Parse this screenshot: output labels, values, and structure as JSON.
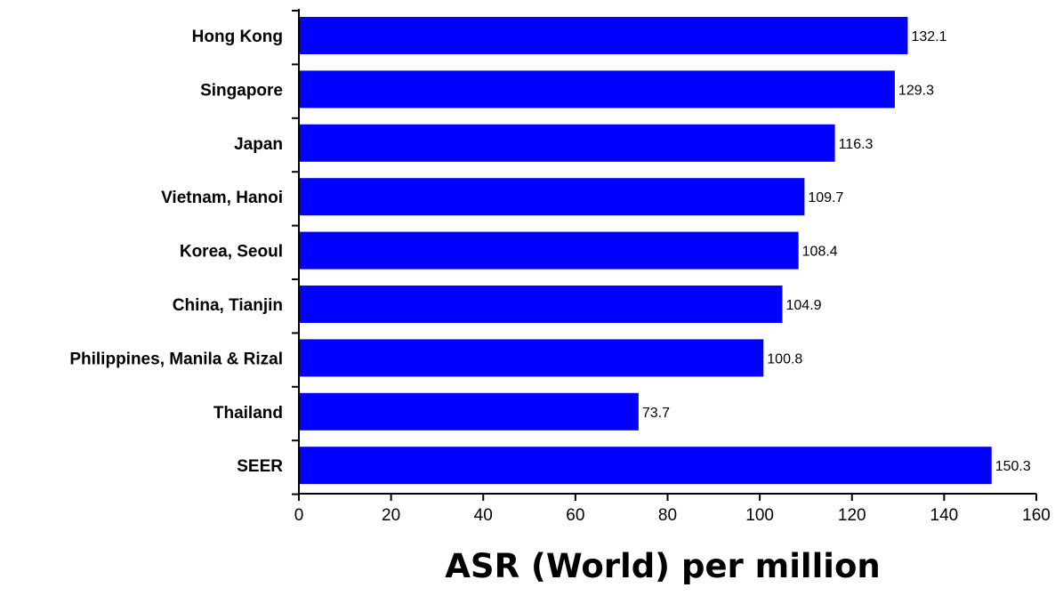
{
  "chart_data": {
    "type": "bar",
    "orientation": "horizontal",
    "categories": [
      "Hong Kong",
      "Singapore",
      "Japan",
      "Vietnam, Hanoi",
      "Korea, Seoul",
      "China, Tianjin",
      "Philippines, Manila & Rizal",
      "Thailand",
      "SEER"
    ],
    "values": [
      132.1,
      129.3,
      116.3,
      109.7,
      108.4,
      104.9,
      100.8,
      73.7,
      150.3
    ],
    "value_labels": [
      "132.1",
      "129.3",
      "116.3",
      "109.7",
      "108.4",
      "104.9",
      "100.8",
      "73.7",
      "150.3"
    ],
    "xlabel": "ASR (World) per million",
    "ylabel": "",
    "title": "",
    "xlim": [
      0,
      160
    ],
    "xticks": [
      "0",
      "20",
      "40",
      "60",
      "80",
      "100",
      "120",
      "140",
      "160"
    ],
    "grid": false,
    "legend": "none",
    "bar_color": "#0000ff"
  }
}
